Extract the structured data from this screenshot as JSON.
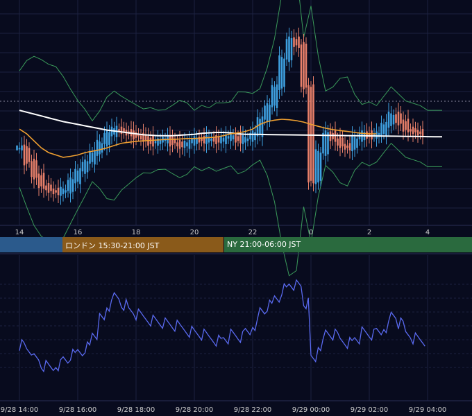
{
  "colors": {
    "background": "#080b1e",
    "grid": "#1c2140",
    "tokyo_session": "#2b5a8c",
    "london_session": "#8a5a1a",
    "ny_session": "#2a6a3e",
    "candle_up": "#3ea0e0",
    "candle_down": "#e8806a",
    "ma_fast": "#f0a030",
    "ma_slow": "#ffffff",
    "bollinger": "#3a9a5a",
    "oscillator": "#5a6af0",
    "axis_text": "#cccccc"
  },
  "sessions": [
    {
      "name": "tokyo",
      "label": ""
    },
    {
      "name": "london",
      "label": "ロンドン 15:30-21:00 JST"
    },
    {
      "name": "ny",
      "label": "NY 21:00-06:00 JST"
    }
  ],
  "chart_data": [
    {
      "type": "candlestick",
      "x_tick_labels": [
        "14",
        "16",
        "18",
        "20",
        "22",
        "0",
        "2",
        "4"
      ],
      "reference_line": "dotted",
      "overlays": [
        "moving-average-fast",
        "moving-average-slow",
        "bollinger-bands"
      ],
      "grid": true,
      "x": [
        14,
        14.25,
        14.5,
        14.75,
        15,
        15.25,
        15.5,
        15.75,
        16,
        16.25,
        16.5,
        16.75,
        17,
        17.25,
        17.5,
        17.75,
        18,
        18.25,
        18.5,
        18.75,
        19,
        19.25,
        19.5,
        19.75,
        20,
        20.25,
        20.5,
        20.75,
        21,
        21.25,
        21.5,
        21.75,
        22,
        22.25,
        22.5,
        22.75,
        23,
        23.25,
        23.5,
        23.75,
        24,
        24.25,
        24.5,
        24.75,
        25,
        25.25,
        25.5,
        25.75,
        26,
        26.25,
        26.5,
        26.75,
        27,
        27.25,
        27.5,
        27.75,
        28,
        28.25,
        28.5
      ],
      "close": [
        45,
        42,
        39,
        37,
        36,
        35.5,
        36,
        38,
        40,
        42,
        44,
        46,
        48,
        49,
        48.5,
        48,
        47.5,
        47,
        46,
        46.5,
        47,
        46,
        45.5,
        46,
        47,
        46.5,
        47,
        46.5,
        47,
        47.5,
        46.5,
        47,
        48,
        51,
        54,
        58,
        64,
        68,
        67,
        58,
        38,
        44,
        48,
        47,
        45.5,
        45,
        47,
        48,
        47.5,
        48,
        50,
        52,
        50.5,
        49,
        48.5,
        48,
        0,
        0,
        0
      ],
      "ma_fast": [
        49,
        48,
        46.5,
        45,
        44,
        43.5,
        43,
        43.2,
        43.5,
        44,
        44.3,
        44.6,
        45,
        45.5,
        46,
        46.2,
        46.4,
        46.5,
        46.6,
        46.7,
        46.8,
        46.8,
        46.9,
        47,
        47,
        47.1,
        47.2,
        47.3,
        47.6,
        48,
        48.2,
        48.5,
        49,
        50,
        50.6,
        50.9,
        51.1,
        51,
        50.8,
        50.5,
        50,
        49.6,
        49.2,
        48.9,
        48.7,
        48.5,
        48.3,
        48.1,
        48,
        48,
        0,
        0,
        0,
        0,
        0,
        0,
        0,
        0,
        0
      ],
      "ma_slow": [
        53,
        52.6,
        52.2,
        51.8,
        51.4,
        51,
        50.6,
        50.3,
        50,
        49.7,
        49.4,
        49.1,
        48.8,
        48.6,
        48.4,
        48.2,
        48,
        47.8,
        47.7,
        47.6,
        47.6,
        47.6,
        47.7,
        47.8,
        47.9,
        48.1,
        48.2,
        48.3,
        48.3,
        48.2,
        48,
        47.9,
        0,
        0,
        0,
        0,
        0,
        0,
        0,
        0,
        0,
        0,
        0,
        0,
        0,
        0,
        0,
        0,
        0,
        0,
        0,
        0,
        0,
        0,
        0,
        0,
        0,
        0,
        0
      ]
    },
    {
      "type": "line",
      "name": "oscillator",
      "x_tick_labels": [
        "9/28 14:00",
        "9/28 16:00",
        "9/28 18:00",
        "9/28 20:00",
        "9/28 22:00",
        "9/29 00:00",
        "9/29 02:00",
        "9/29 04:00"
      ],
      "grid": true,
      "x": [
        14,
        14.25,
        14.5,
        14.75,
        15,
        15.25,
        15.5,
        15.75,
        16,
        16.25,
        16.5,
        16.75,
        17,
        17.25,
        17.5,
        17.75,
        18,
        18.25,
        18.5,
        18.75,
        19,
        19.25,
        19.5,
        19.75,
        20,
        20.25,
        20.5,
        20.75,
        21,
        21.25,
        21.5,
        21.75,
        22,
        22.25,
        22.5,
        22.75,
        23,
        23.25,
        23.5,
        23.75,
        24,
        24.25,
        24.5,
        24.75,
        25,
        25.25,
        25.5,
        25.75,
        26,
        26.25,
        26.5,
        26.75,
        27,
        27.25,
        27.5,
        27.75,
        28,
        28.25,
        28.5
      ],
      "y": [
        45,
        43,
        38,
        35,
        34,
        36,
        38,
        40,
        42,
        44,
        50,
        56,
        62,
        66,
        63,
        60,
        58,
        57,
        56,
        55,
        54,
        53,
        52,
        51,
        50,
        49,
        48,
        47,
        48,
        49,
        48,
        50,
        54,
        60,
        62,
        66,
        70,
        72,
        71,
        63,
        38,
        45,
        50,
        49,
        47,
        46,
        48,
        50,
        49,
        50,
        53,
        58,
        54,
        50,
        48,
        47,
        0,
        0,
        0
      ]
    }
  ]
}
